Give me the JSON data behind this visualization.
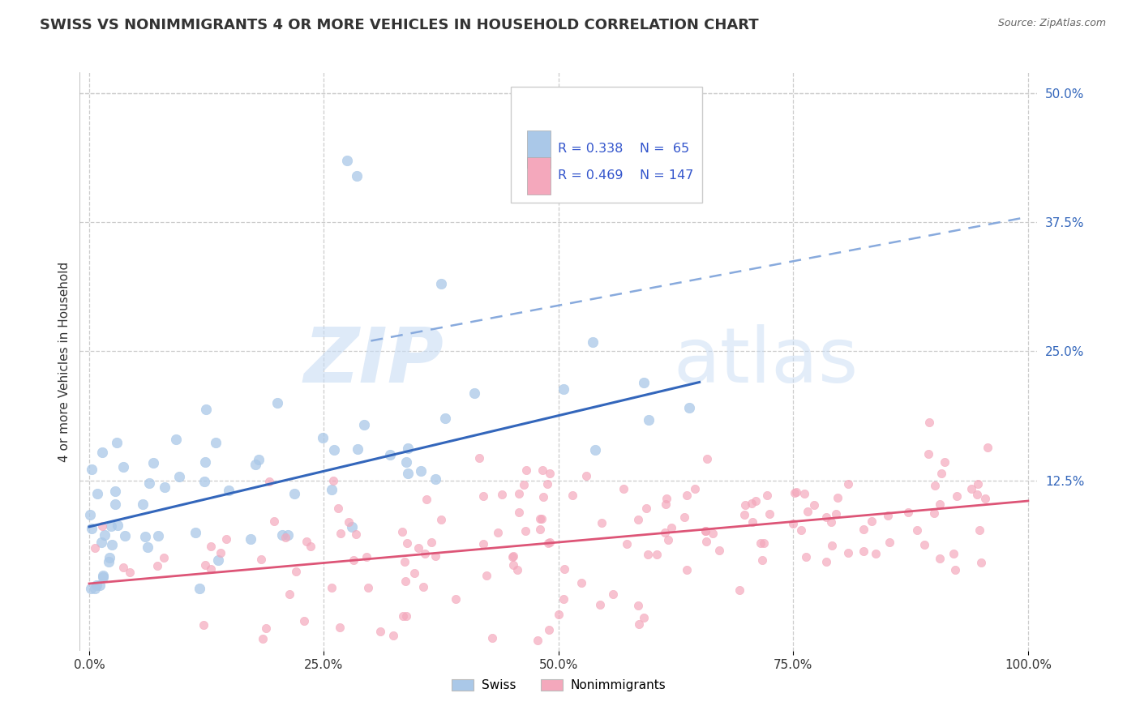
{
  "title": "SWISS VS NONIMMIGRANTS 4 OR MORE VEHICLES IN HOUSEHOLD CORRELATION CHART",
  "source": "Source: ZipAtlas.com",
  "ylabel": "4 or more Vehicles in Household",
  "xlim": [
    -1,
    101
  ],
  "ylim": [
    -4,
    52
  ],
  "swiss_R": 0.338,
  "swiss_N": 65,
  "nonimm_R": 0.469,
  "nonimm_N": 147,
  "swiss_color": "#aac8e8",
  "nonimm_color": "#f4a8bc",
  "swiss_line_color": "#3366bb",
  "nonimm_line_color": "#dd5577",
  "dashed_line_color": "#88aadd",
  "legend_R_color": "#3355cc",
  "background_color": "#ffffff",
  "grid_color": "#cccccc",
  "ytick_color": "#3366bb",
  "ytick_labels": [
    "50.0%",
    "37.5%",
    "25.0%",
    "12.5%"
  ],
  "ytick_values": [
    50.0,
    37.5,
    25.0,
    12.5
  ],
  "xtick_labels": [
    "0.0%",
    "25.0%",
    "50.0%",
    "75.0%",
    "100.0%"
  ],
  "xtick_values": [
    0,
    25,
    50,
    75,
    100
  ],
  "title_fontsize": 13,
  "axis_label_fontsize": 11,
  "tick_fontsize": 11,
  "watermark_color": "#c0d8f0",
  "swiss_marker_size": 80,
  "nonimm_marker_size": 55
}
